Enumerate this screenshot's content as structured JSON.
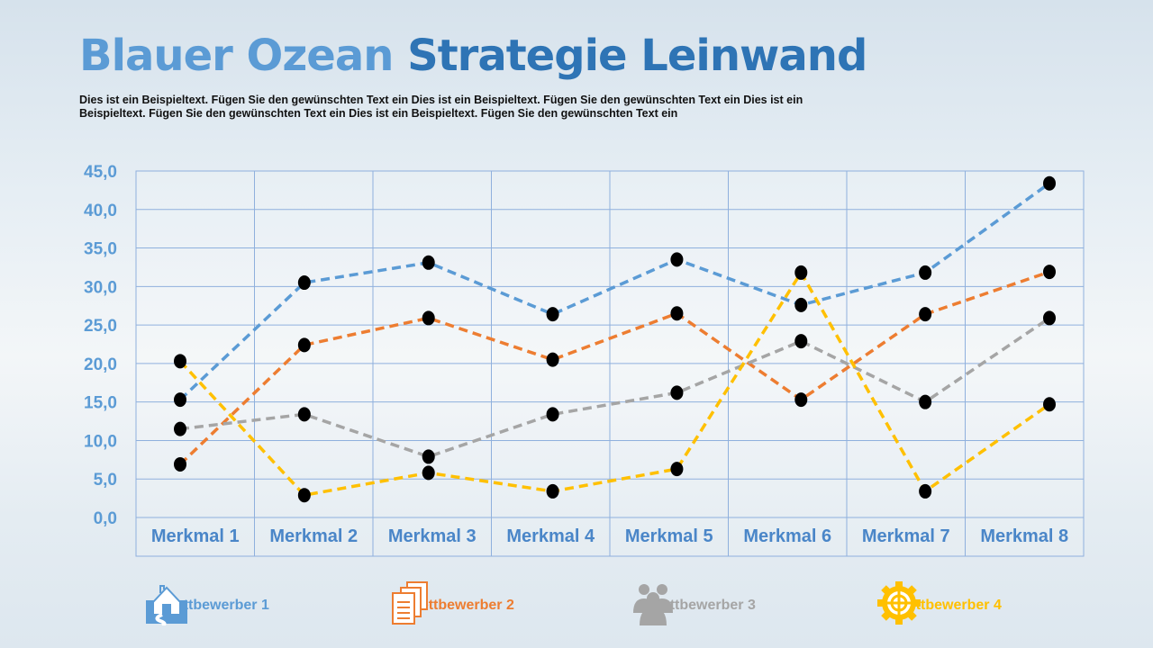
{
  "title_part1": "Blauer Ozean",
  "title_part2": "Strategie Leinwand",
  "description": "Dies ist ein Beispieltext. Fügen Sie den gewünschten Text ein Dies ist ein Beispieltext. Fügen Sie den gewünschten Text ein Dies ist ein Beispieltext. Fügen Sie den gewünschten Text ein Dies ist ein Beispieltext. Fügen Sie den gewünschten Text ein",
  "chart_data": {
    "type": "line",
    "categories": [
      "Merkmal 1",
      "Merkmal 2",
      "Merkmal 3",
      "Merkmal 4",
      "Merkmal 5",
      "Merkmal 6",
      "Merkmal 7",
      "Merkmal 8"
    ],
    "ylim": [
      0,
      45
    ],
    "yticks": [
      "0,0",
      "5,0",
      "10,0",
      "15,0",
      "20,0",
      "25,0",
      "30,0",
      "35,0",
      "40,0",
      "45,0"
    ],
    "grid": true,
    "legend_position": "bottom",
    "series": [
      {
        "name": "Wettbewerber 1",
        "color": "#5b9bd5",
        "icon": "house-road-icon",
        "values": [
          15.3,
          30.5,
          33.1,
          26.4,
          33.5,
          27.6,
          31.8,
          43.4
        ]
      },
      {
        "name": "Wettbewerber 2",
        "color": "#ed7d31",
        "icon": "documents-icon",
        "values": [
          6.9,
          22.4,
          25.9,
          20.5,
          26.5,
          15.3,
          26.4,
          31.9
        ]
      },
      {
        "name": "Wettbewerber 3",
        "color": "#a5a5a5",
        "icon": "people-icon",
        "values": [
          11.5,
          13.4,
          7.9,
          13.4,
          16.2,
          22.9,
          15.0,
          25.9
        ]
      },
      {
        "name": "Wettbewerber 4",
        "color": "#ffc000",
        "icon": "gear-target-icon",
        "values": [
          20.3,
          2.9,
          5.8,
          3.4,
          6.3,
          31.8,
          3.4,
          14.7
        ]
      }
    ]
  }
}
